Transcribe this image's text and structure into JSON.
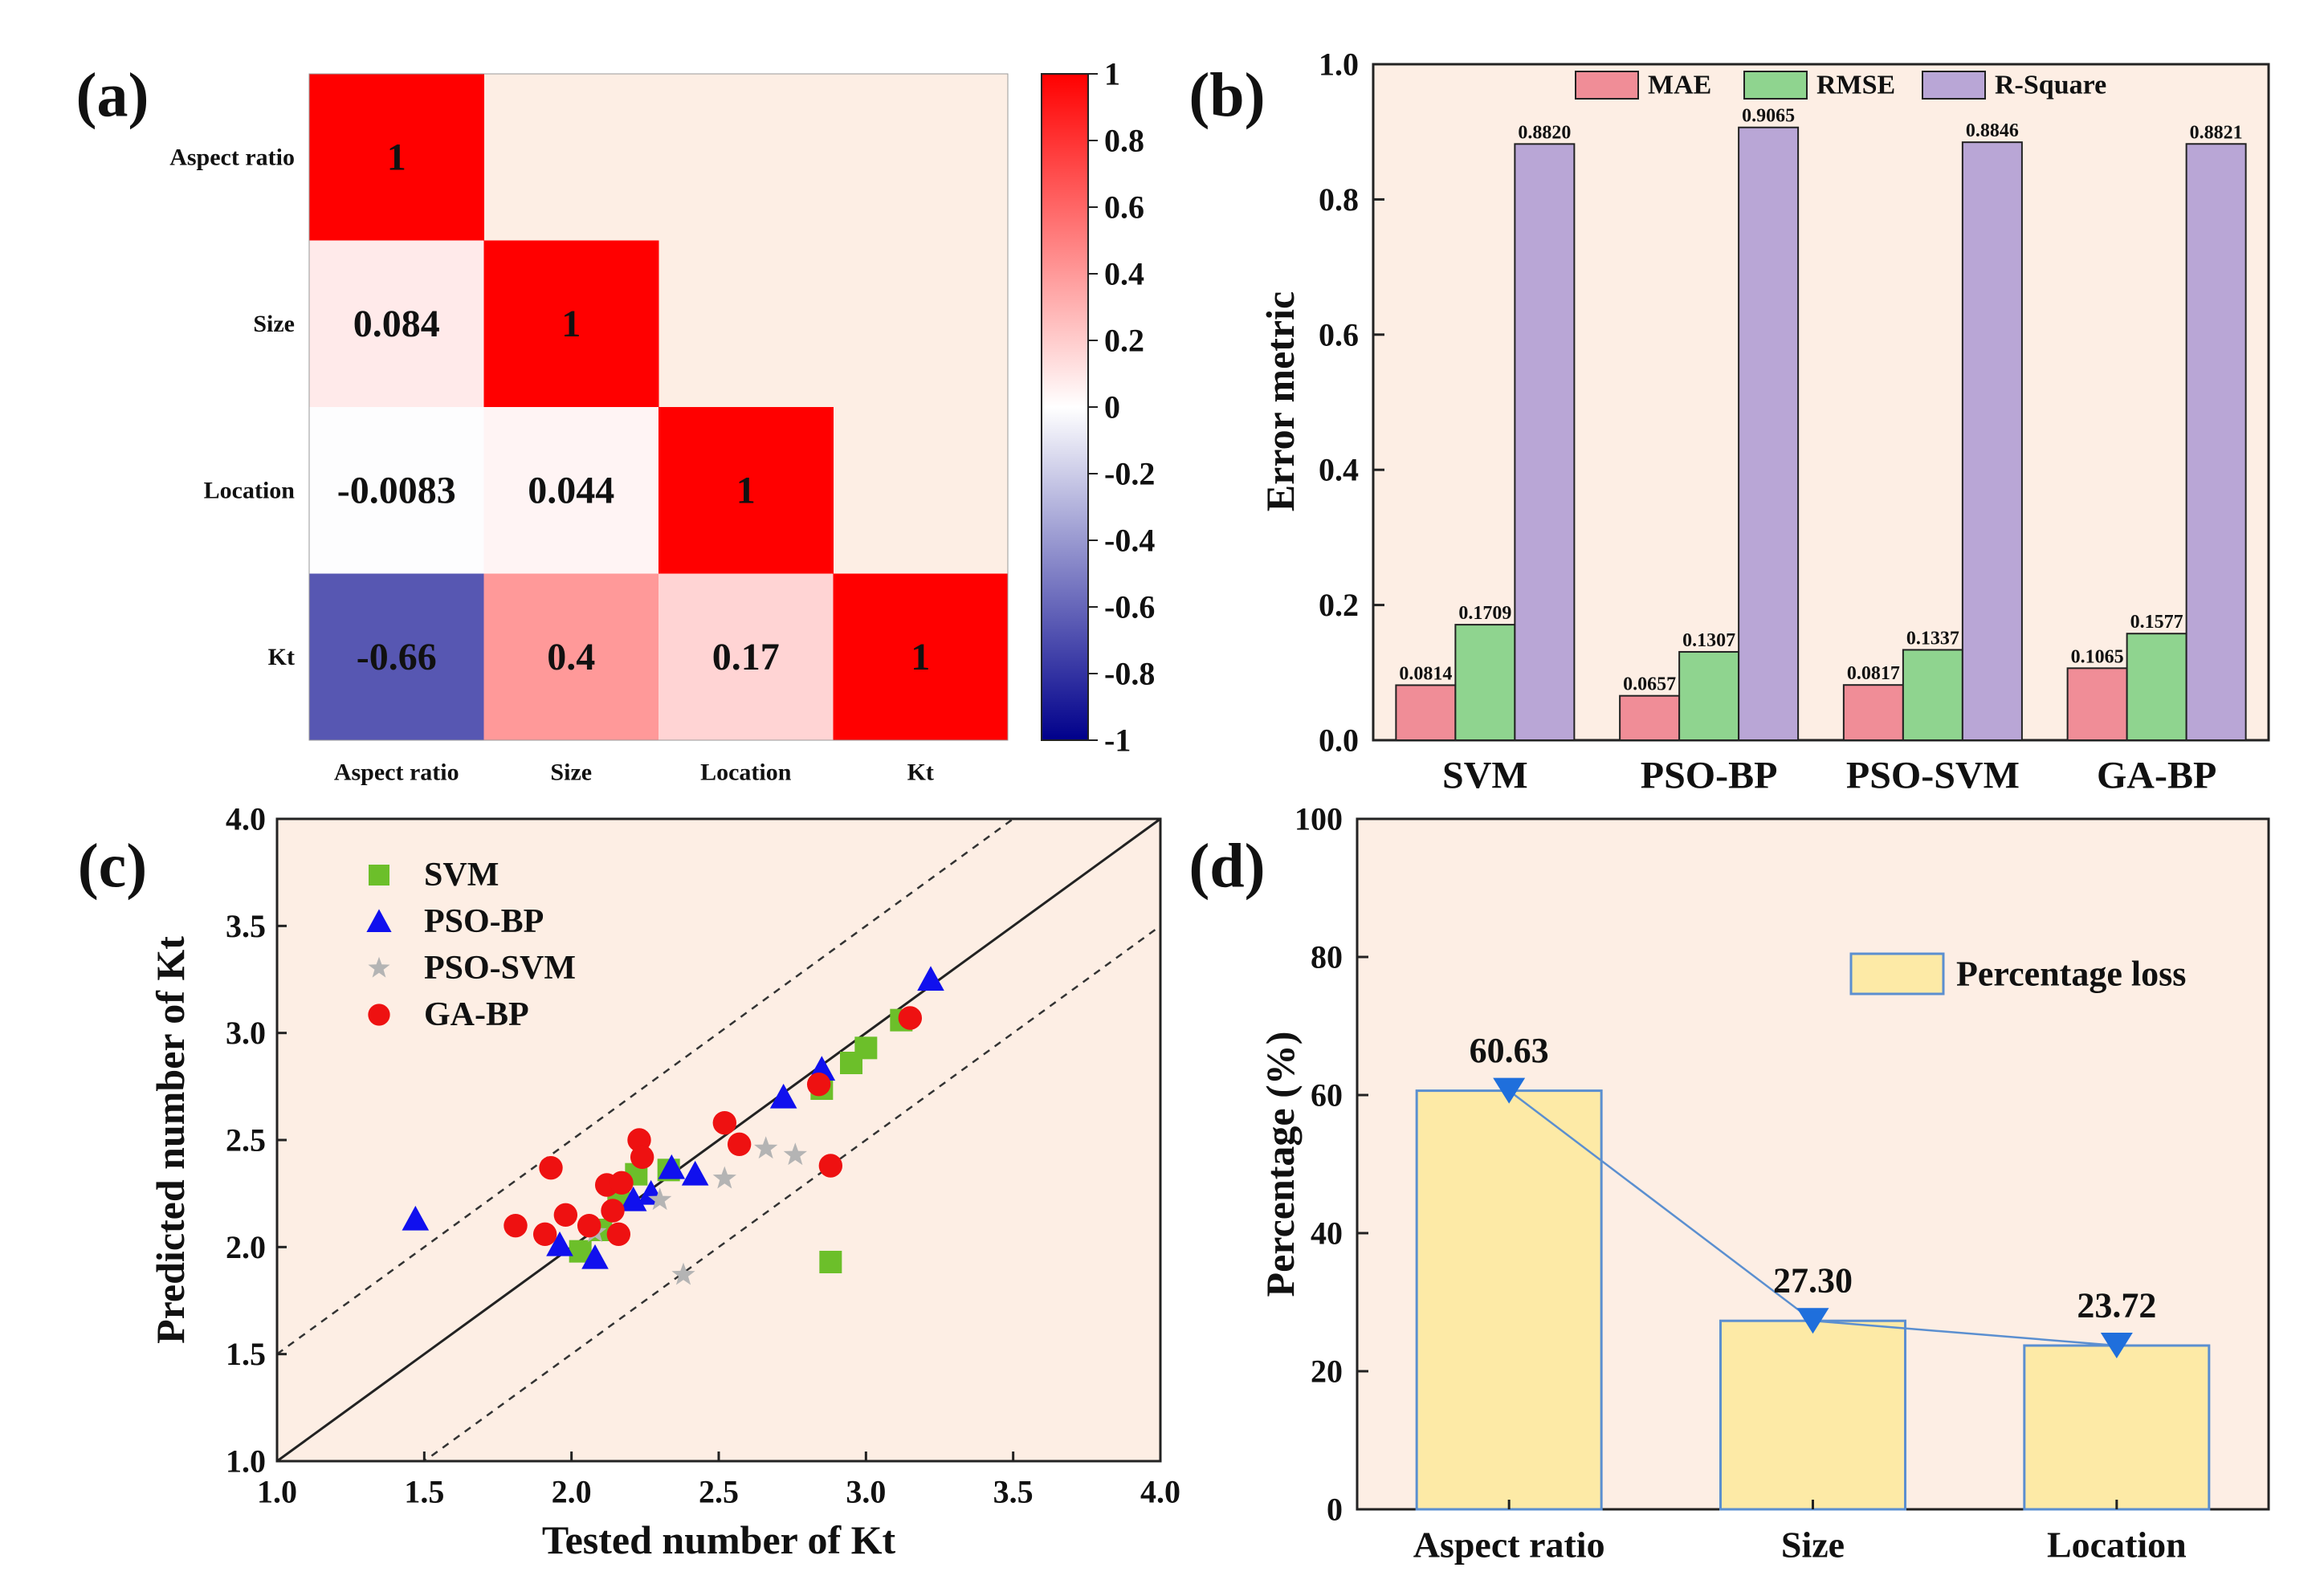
{
  "chart_data": [
    {
      "panel": "a",
      "type": "heatmap",
      "panel_label": "(a)",
      "row_labels": [
        "Aspect ratio",
        "Size",
        "Location",
        "Kt"
      ],
      "col_labels": [
        "Aspect ratio",
        "Size",
        "Location",
        "Kt"
      ],
      "values": [
        [
          1,
          null,
          null,
          null
        ],
        [
          0.084,
          1,
          null,
          null
        ],
        [
          -0.0083,
          0.044,
          1,
          null
        ],
        [
          -0.66,
          0.4,
          0.17,
          1
        ]
      ],
      "cell_text": [
        [
          "1",
          "",
          "",
          ""
        ],
        [
          "0.084",
          "1",
          "",
          ""
        ],
        [
          "-0.0083",
          "0.044",
          "1",
          ""
        ],
        [
          "-0.66",
          "0.4",
          "0.17",
          "1"
        ]
      ],
      "colorbar": {
        "range": [
          -1,
          1
        ],
        "ticks": [
          "1",
          "0.8",
          "0.6",
          "0.4",
          "0.2",
          "0",
          "-0.2",
          "-0.4",
          "-0.6",
          "-0.8",
          "-1"
        ],
        "tick_values": [
          1,
          0.8,
          0.6,
          0.4,
          0.2,
          0,
          -0.2,
          -0.4,
          -0.6,
          -0.8,
          -1
        ],
        "colors": {
          "low": "#00008b",
          "mid": "#ffffff",
          "high": "#ff0000"
        }
      },
      "background": "#fdeee4"
    },
    {
      "panel": "b",
      "type": "bar",
      "panel_label": "(b)",
      "categories": [
        "SVM",
        "PSO-BP",
        "PSO-SVM",
        "GA-BP"
      ],
      "series": [
        {
          "name": "MAE",
          "values": [
            0.0814,
            0.0657,
            0.0817,
            0.1065
          ],
          "labels": [
            "0.0814",
            "0.0657",
            "0.0817",
            "0.1065"
          ],
          "color": "#f08d97"
        },
        {
          "name": "RMSE",
          "values": [
            0.1709,
            0.1307,
            0.1337,
            0.1577
          ],
          "labels": [
            "0.1709",
            "0.1307",
            "0.1337",
            "0.1577"
          ],
          "color": "#8fd48f"
        },
        {
          "name": "R-Square",
          "values": [
            0.882,
            0.9065,
            0.8846,
            0.8821
          ],
          "labels": [
            "0.8820",
            "0.9065",
            "0.8846",
            "0.8821"
          ],
          "color": "#b9a6d6"
        }
      ],
      "ylabel": "Error metric",
      "ylim": [
        0,
        1.0
      ],
      "yticks": [
        "0.0",
        "0.2",
        "0.4",
        "0.6",
        "0.8",
        "1.0"
      ],
      "ytick_values": [
        0,
        0.2,
        0.4,
        0.6,
        0.8,
        1.0
      ],
      "legend_position": "top",
      "background": "#fdeee4"
    },
    {
      "panel": "c",
      "type": "scatter",
      "panel_label": "(c)",
      "xlabel": "Tested number of Kt",
      "ylabel": "Predicted number of Kt",
      "xlim": [
        1.0,
        4.0
      ],
      "ylim": [
        1.0,
        4.0
      ],
      "xticks": [
        "1.0",
        "1.5",
        "2.0",
        "2.5",
        "3.0",
        "3.5",
        "4.0"
      ],
      "xtick_values": [
        1.0,
        1.5,
        2.0,
        2.5,
        3.0,
        3.5,
        4.0
      ],
      "yticks": [
        "1.0",
        "1.5",
        "2.0",
        "2.5",
        "3.0",
        "3.5",
        "4.0"
      ],
      "ytick_values": [
        1.0,
        1.5,
        2.0,
        2.5,
        3.0,
        3.5,
        4.0
      ],
      "reference_lines": {
        "identity": "y = x",
        "bands": [
          "y = x + 0.5",
          "y = x - 0.5"
        ]
      },
      "series": [
        {
          "name": "SVM",
          "marker": "square",
          "color": "#6cbf2a",
          "x": [
            2.03,
            2.1,
            2.16,
            2.22,
            2.33,
            2.85,
            2.88,
            2.95,
            3.0,
            3.12
          ],
          "y": [
            1.98,
            2.08,
            2.23,
            2.34,
            2.36,
            2.74,
            1.93,
            2.86,
            2.93,
            3.06
          ]
        },
        {
          "name": "PSO-BP",
          "marker": "triangle",
          "color": "#1010ee",
          "x": [
            1.47,
            1.96,
            2.08,
            2.21,
            2.27,
            2.34,
            2.42,
            2.72,
            2.85,
            3.22
          ],
          "y": [
            2.13,
            2.01,
            1.95,
            2.22,
            2.25,
            2.37,
            2.34,
            2.7,
            2.83,
            3.25
          ]
        },
        {
          "name": "PSO-SVM",
          "marker": "star",
          "color": "#b4b4b4",
          "x": [
            2.08,
            2.3,
            2.38,
            2.52,
            2.66,
            2.76
          ],
          "y": [
            2.07,
            2.22,
            1.87,
            2.32,
            2.46,
            2.43
          ]
        },
        {
          "name": "GA-BP",
          "marker": "circle",
          "color": "#ee1111",
          "x": [
            1.81,
            1.91,
            1.93,
            1.98,
            2.06,
            2.12,
            2.14,
            2.16,
            2.17,
            2.23,
            2.24,
            2.52,
            2.57,
            2.84,
            2.88,
            3.15
          ],
          "y": [
            2.1,
            2.06,
            2.37,
            2.15,
            2.1,
            2.29,
            2.17,
            2.06,
            2.3,
            2.5,
            2.42,
            2.58,
            2.48,
            2.76,
            2.38,
            3.07
          ]
        }
      ],
      "legend_position": "top-left",
      "background": "#fdeee4"
    },
    {
      "panel": "d",
      "type": "bar",
      "panel_label": "(d)",
      "categories": [
        "Aspect ratio",
        "Size",
        "Location"
      ],
      "values": [
        60.63,
        27.3,
        23.72
      ],
      "value_labels": [
        "60.63",
        "27.30",
        "23.72"
      ],
      "series_name": "Percentage loss",
      "overlay": "line with downward triangle markers at bar tops",
      "ylabel": "Percentage (%)",
      "ylim": [
        0,
        100
      ],
      "yticks": [
        "0",
        "20",
        "40",
        "60",
        "80",
        "100"
      ],
      "ytick_values": [
        0,
        20,
        40,
        60,
        80,
        100
      ],
      "bar_color": "#fdeaa6",
      "bar_edge": "#5b8fd0",
      "label_color": "#1f6fdc",
      "legend_position": "top-right",
      "background": "#fdeee4"
    }
  ]
}
